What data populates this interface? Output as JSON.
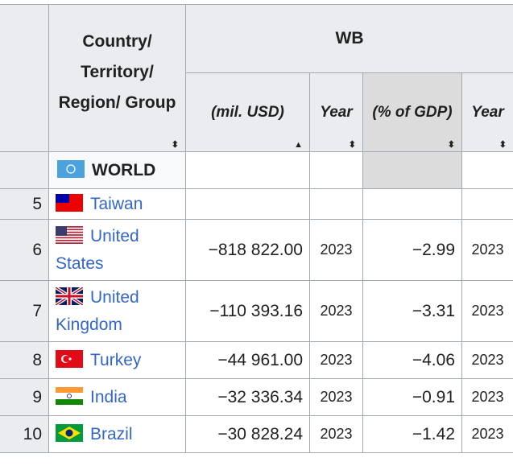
{
  "header": {
    "country": "Country/ Territory/ Region/ Group",
    "group": "WB",
    "cols": [
      "(mil. USD)",
      "Year",
      "(% of GDP)",
      "Year"
    ]
  },
  "sticky": {
    "label": "WORLD",
    "flag": "un-flag-icon"
  },
  "rows": [
    {
      "rank": "5",
      "country": "Taiwan",
      "flag": "taiwan-flag-icon",
      "usd": "",
      "year": "",
      "gdp": "",
      "year2": ""
    },
    {
      "rank": "6",
      "country": "United States",
      "flag": "us-flag-icon",
      "usd": "−818 822.00",
      "year": "2023",
      "gdp": "−2.99",
      "year2": "2023"
    },
    {
      "rank": "7",
      "country": "United Kingdom",
      "flag": "uk-flag-icon",
      "usd": "−110 393.16",
      "year": "2023",
      "gdp": "−3.31",
      "year2": "2023"
    },
    {
      "rank": "8",
      "country": "Turkey",
      "flag": "turkey-flag-icon",
      "usd": "−44 961.00",
      "year": "2023",
      "gdp": "−4.06",
      "year2": "2023"
    },
    {
      "rank": "9",
      "country": "India",
      "flag": "india-flag-icon",
      "usd": "−32 336.34",
      "year": "2023",
      "gdp": "−0.91",
      "year2": "2023"
    },
    {
      "rank": "10",
      "country": "Brazil",
      "flag": "brazil-flag-icon",
      "usd": "−30 828.24",
      "year": "2023",
      "gdp": "−1.42",
      "year2": "2023"
    }
  ]
}
